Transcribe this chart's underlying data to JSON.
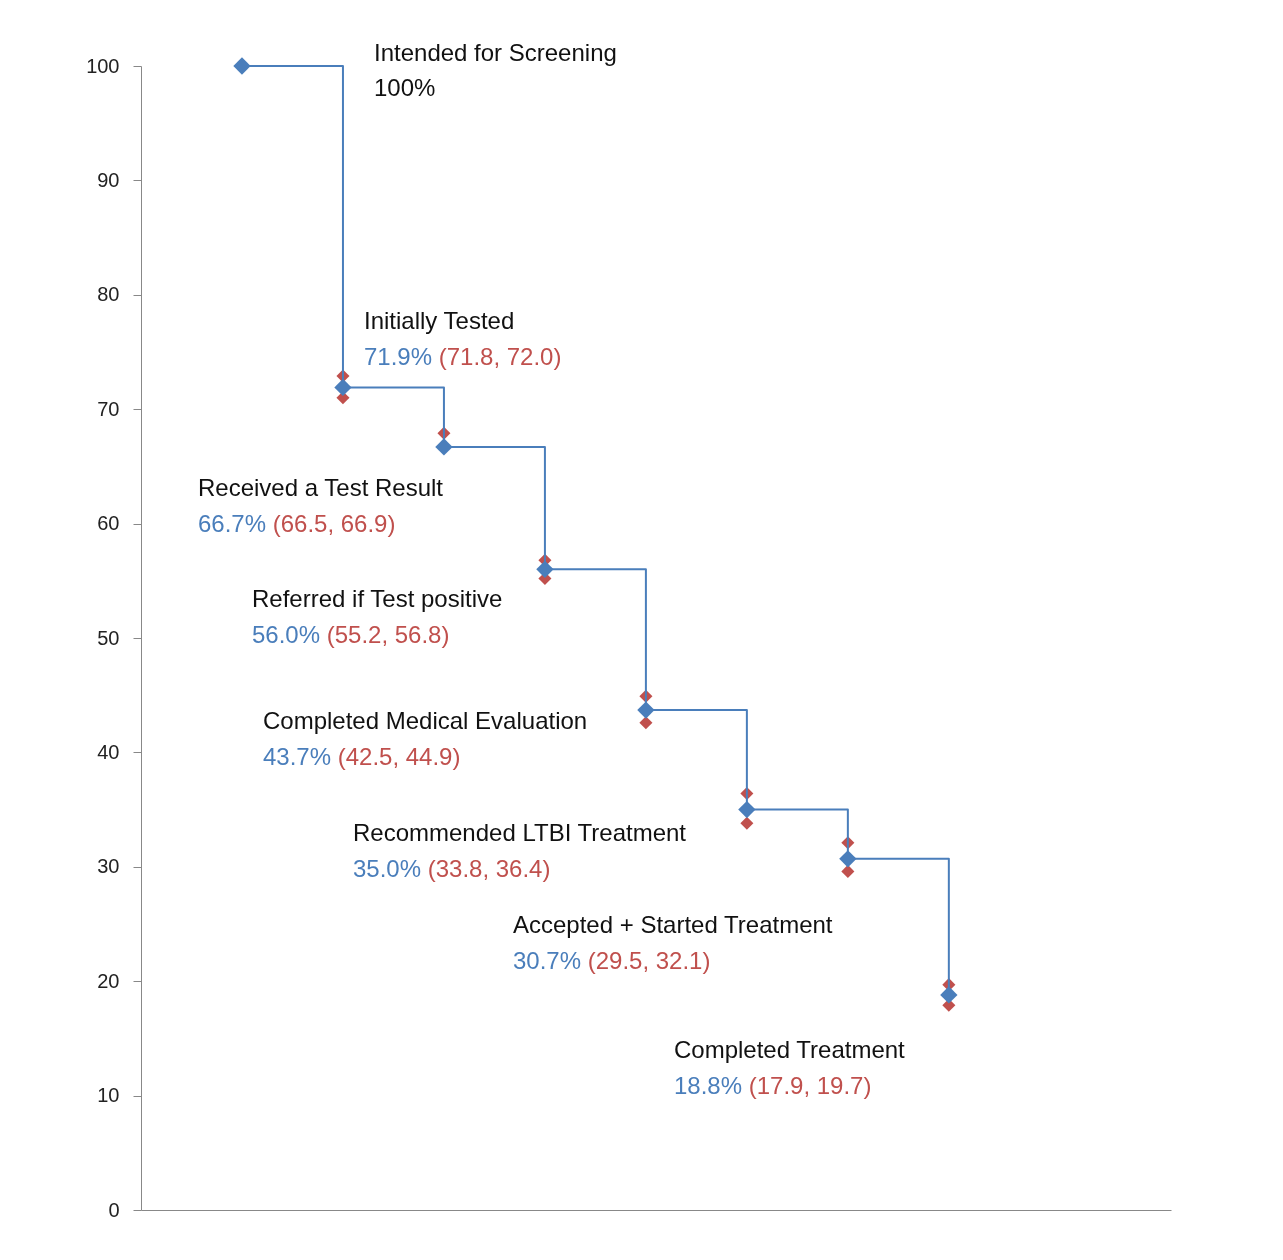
{
  "chart_data": {
    "type": "step",
    "categories": [
      null,
      null,
      null,
      null,
      null,
      null,
      null,
      null
    ],
    "ylim": [
      0,
      100
    ],
    "yticks": [
      0,
      10,
      20,
      30,
      40,
      50,
      60,
      70,
      80,
      90,
      100
    ],
    "tick_labels": "y",
    "grid": false,
    "marker": "diamond",
    "line_style": "solid",
    "series": [
      {
        "color": "#4a7ebb",
        "values": [
          100,
          71.9,
          66.7,
          56.0,
          43.7,
          35.0,
          30.7,
          18.8
        ]
      },
      {
        "type": "scatter",
        "color": "#c0504d",
        "values": [
          null,
          72.9,
          67.9,
          56.8,
          44.9,
          36.4,
          32.1,
          19.7
        ]
      },
      {
        "type": "scatter",
        "color": "#c0504d",
        "values": [
          null,
          71.0,
          null,
          55.2,
          42.6,
          33.8,
          29.6,
          17.9
        ]
      }
    ],
    "annotations": [
      "Intended for Screening",
      "100%",
      "Initially Tested",
      "71.9%",
      "(71.8, 72.0)",
      "Received a Test Result",
      "66.7%",
      "(66.5, 66.9)",
      "Referred if Test positive",
      "56.0%",
      "(55.2, 56.8)",
      "Completed Medical Evaluation",
      "43.7%",
      "(42.5, 44.9)",
      "Recommended LTBI Treatment",
      "35.0%",
      "(33.8, 36.4)",
      "Accepted + Started Treatment",
      "30.7%",
      "(29.5, 32.1)",
      "Completed Treatment",
      "18.8%",
      "(17.9, 19.7)"
    ]
  }
}
